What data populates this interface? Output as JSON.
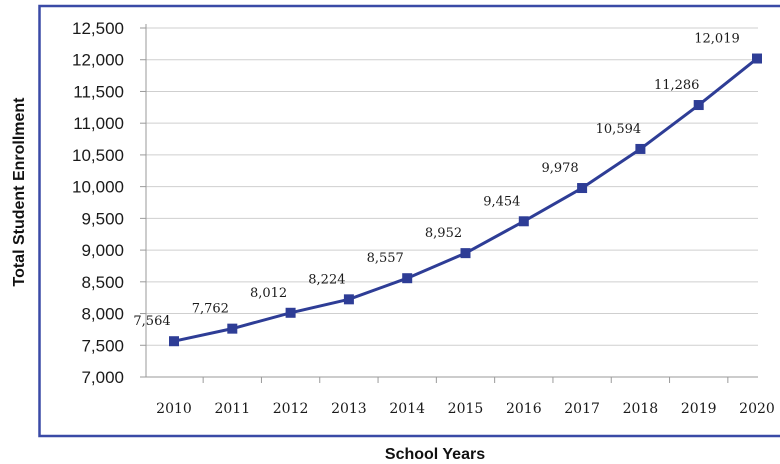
{
  "chart_data": {
    "type": "line",
    "title": "",
    "xlabel": "School Years",
    "ylabel": "Total Student Enrollment",
    "categories": [
      "2010",
      "2011",
      "2012",
      "2013",
      "2014",
      "2015",
      "2016",
      "2017",
      "2018",
      "2019",
      "2020"
    ],
    "series": [
      {
        "values": [
          7564,
          7762,
          8012,
          8224,
          8557,
          8952,
          9454,
          9978,
          10594,
          11286,
          12019
        ],
        "labels": [
          "7,564",
          "7,762",
          "8,012",
          "8,224",
          "8,557",
          "8,952",
          "9,454",
          "9,978",
          "10,594",
          "11,286",
          "12,019"
        ]
      }
    ],
    "yticks": [
      7000,
      7500,
      8000,
      8500,
      9000,
      9500,
      10000,
      10500,
      11000,
      11500,
      12000,
      12500
    ],
    "ytick_labels": [
      "7,000",
      "7,500",
      "8,000",
      "8,500",
      "9,000",
      "9,500",
      "10,000",
      "10,500",
      "11,000",
      "11,500",
      "12,000",
      "12,500"
    ],
    "ylim": [
      7000,
      12500
    ],
    "grid": true,
    "legend": "none",
    "colors": {
      "line": "#2e3d96",
      "marker": "#2e3d96",
      "frame": "#3a4aa6",
      "grid": "#cfcfcf"
    }
  }
}
